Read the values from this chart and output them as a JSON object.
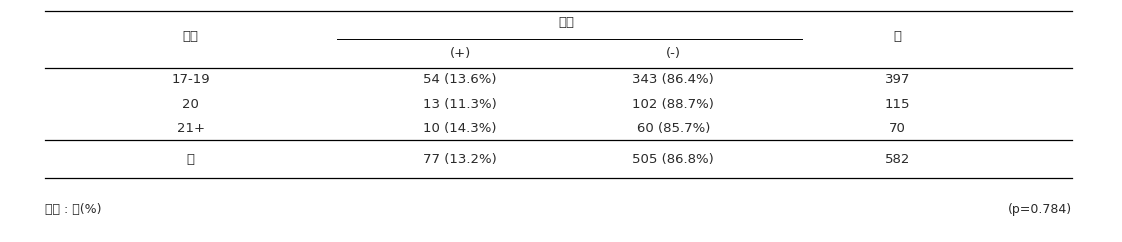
{
  "title_col1": "나이",
  "title_group": "항체",
  "title_sub1": "(+)",
  "title_sub2": "(-)",
  "title_col4": "계",
  "rows": [
    {
      "age": "17-19",
      "pos": "54 (13.6%)",
      "neg": "343 (86.4%)",
      "total": "397"
    },
    {
      "age": "20",
      "pos": "13 (11.3%)",
      "neg": "102 (88.7%)",
      "total": "115"
    },
    {
      "age": "21+",
      "pos": "10 (14.3%)",
      "neg": "60 (85.7%)",
      "total": "70"
    }
  ],
  "footer_row": {
    "age": "계",
    "pos": "77 (13.2%)",
    "neg": "505 (86.8%)",
    "total": "582"
  },
  "footnote_left": "단위 : 명(%)",
  "footnote_right": "(p=0.784)",
  "font_size": 9.5,
  "text_color": "#2a2a2a"
}
